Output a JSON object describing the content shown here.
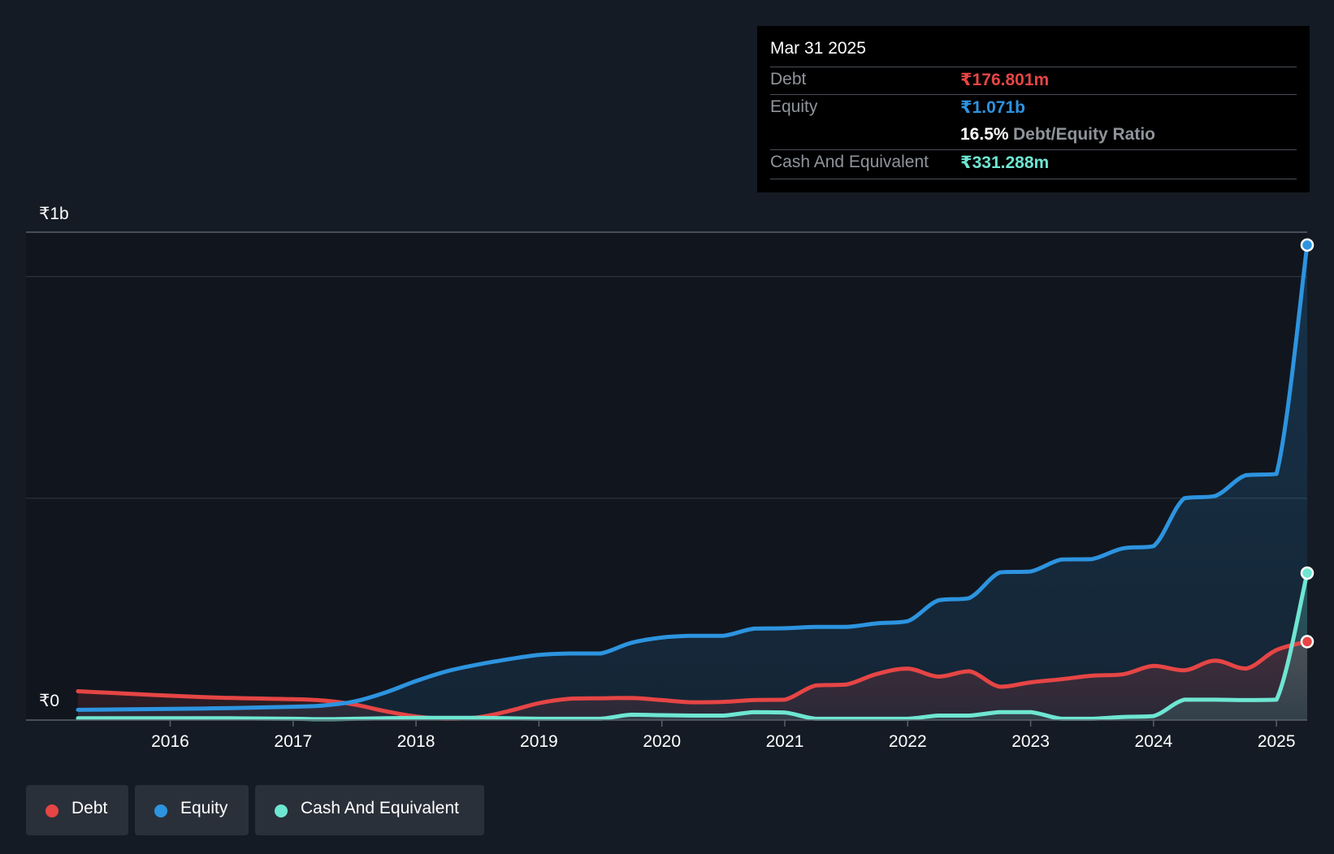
{
  "tooltip": {
    "date": "Mar 31 2025",
    "debt_label": "Debt",
    "debt_value": "₹176.801m",
    "equity_label": "Equity",
    "equity_value": "₹1.071b",
    "ratio_value": "16.5%",
    "ratio_label": "Debt/Equity Ratio",
    "cash_label": "Cash And Equivalent",
    "cash_value": "₹331.288m"
  },
  "legend": {
    "debt": "Debt",
    "equity": "Equity",
    "cash": "Cash And Equivalent"
  },
  "colors": {
    "debt": "#e64545",
    "equity": "#2d94e0",
    "cash": "#6ee6d2",
    "background": "#151b24"
  },
  "chart_data": {
    "type": "area",
    "title": "",
    "xlabel": "",
    "ylabel": "",
    "y_axis_labels": [
      "₹1b",
      "₹0"
    ],
    "x_tick_labels": [
      "2016",
      "2017",
      "2018",
      "2019",
      "2020",
      "2021",
      "2022",
      "2023",
      "2024",
      "2025"
    ],
    "x_ticks": [
      2016,
      2017,
      2018,
      2019,
      2020,
      2021,
      2022,
      2023,
      2024,
      2025
    ],
    "xlim": [
      2015.25,
      2025.25
    ],
    "ylim": [
      0,
      1100
    ],
    "units": "₹ millions",
    "series": [
      {
        "name": "Debt",
        "key": "debt",
        "points": [
          [
            2015.25,
            65
          ],
          [
            2016.25,
            52
          ],
          [
            2017.0,
            47
          ],
          [
            2017.25,
            44
          ],
          [
            2017.5,
            35
          ],
          [
            2017.75,
            20
          ],
          [
            2018.0,
            8
          ],
          [
            2018.25,
            3
          ],
          [
            2018.5,
            6
          ],
          [
            2018.75,
            20
          ],
          [
            2019.0,
            38
          ],
          [
            2019.25,
            48
          ],
          [
            2019.5,
            49
          ],
          [
            2019.75,
            50
          ],
          [
            2020.0,
            45
          ],
          [
            2020.25,
            40
          ],
          [
            2020.5,
            41
          ],
          [
            2020.75,
            45
          ],
          [
            2021.0,
            46
          ],
          [
            2021.25,
            78
          ],
          [
            2021.5,
            80
          ],
          [
            2021.75,
            104
          ],
          [
            2022.0,
            116
          ],
          [
            2022.25,
            98
          ],
          [
            2022.5,
            110
          ],
          [
            2022.75,
            75
          ],
          [
            2023.0,
            85
          ],
          [
            2023.25,
            92
          ],
          [
            2023.5,
            100
          ],
          [
            2023.75,
            103
          ],
          [
            2024.0,
            122
          ],
          [
            2024.25,
            112
          ],
          [
            2024.5,
            134
          ],
          [
            2024.75,
            116
          ],
          [
            2025.0,
            158
          ],
          [
            2025.25,
            176.8
          ]
        ]
      },
      {
        "name": "Equity",
        "key": "equity",
        "points": [
          [
            2015.25,
            23
          ],
          [
            2016.0,
            25
          ],
          [
            2016.5,
            27
          ],
          [
            2017.0,
            30
          ],
          [
            2017.25,
            33
          ],
          [
            2017.5,
            42
          ],
          [
            2017.75,
            62
          ],
          [
            2018.0,
            88
          ],
          [
            2018.25,
            110
          ],
          [
            2018.5,
            125
          ],
          [
            2018.75,
            137
          ],
          [
            2019.0,
            147
          ],
          [
            2019.25,
            150
          ],
          [
            2019.5,
            150
          ],
          [
            2019.75,
            174
          ],
          [
            2020.0,
            186
          ],
          [
            2020.25,
            190
          ],
          [
            2020.5,
            190
          ],
          [
            2020.75,
            206
          ],
          [
            2021.0,
            207
          ],
          [
            2021.25,
            210
          ],
          [
            2021.5,
            210
          ],
          [
            2021.75,
            218
          ],
          [
            2022.0,
            223
          ],
          [
            2022.25,
            270
          ],
          [
            2022.5,
            275
          ],
          [
            2022.75,
            333
          ],
          [
            2023.0,
            335
          ],
          [
            2023.25,
            362
          ],
          [
            2023.5,
            363
          ],
          [
            2023.75,
            387
          ],
          [
            2024.0,
            392
          ],
          [
            2024.25,
            500
          ],
          [
            2024.5,
            505
          ],
          [
            2024.75,
            552
          ],
          [
            2025.0,
            555
          ],
          [
            2025.25,
            1071
          ]
        ]
      },
      {
        "name": "Cash And Equivalent",
        "key": "cash",
        "points": [
          [
            2015.25,
            4
          ],
          [
            2016.0,
            4
          ],
          [
            2016.5,
            4
          ],
          [
            2017.0,
            3
          ],
          [
            2017.25,
            2
          ],
          [
            2017.5,
            3
          ],
          [
            2017.75,
            4
          ],
          [
            2018.0,
            5
          ],
          [
            2018.25,
            5
          ],
          [
            2018.5,
            5
          ],
          [
            2018.75,
            4
          ],
          [
            2019.0,
            3
          ],
          [
            2019.25,
            3
          ],
          [
            2019.5,
            3
          ],
          [
            2019.75,
            12
          ],
          [
            2020.0,
            11
          ],
          [
            2020.25,
            10
          ],
          [
            2020.5,
            10
          ],
          [
            2020.75,
            18
          ],
          [
            2021.0,
            17
          ],
          [
            2021.25,
            3
          ],
          [
            2021.5,
            3
          ],
          [
            2021.75,
            3
          ],
          [
            2022.0,
            3
          ],
          [
            2022.25,
            10
          ],
          [
            2022.5,
            10
          ],
          [
            2022.75,
            18
          ],
          [
            2023.0,
            18
          ],
          [
            2023.25,
            3
          ],
          [
            2023.5,
            3
          ],
          [
            2023.75,
            7
          ],
          [
            2024.0,
            9
          ],
          [
            2024.25,
            46
          ],
          [
            2024.5,
            46
          ],
          [
            2024.75,
            45
          ],
          [
            2025.0,
            46
          ],
          [
            2025.25,
            331.3
          ]
        ]
      }
    ],
    "gridlines": [
      0,
      500,
      1000,
      1100
    ],
    "legend_position": "bottom-left"
  }
}
